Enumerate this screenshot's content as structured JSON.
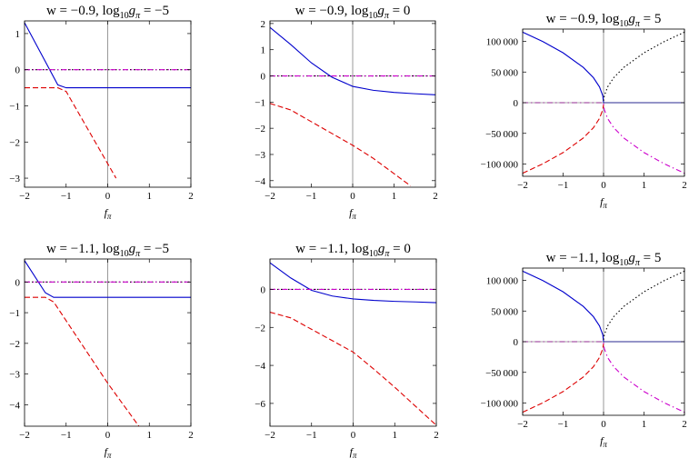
{
  "figure": {
    "panel_count": 6
  },
  "chart_data": [
    {
      "type": "line",
      "title": "w = −0.9,  log10gπ = −5",
      "title_parts": {
        "main": "w = −0.9,  log",
        "sub": "10",
        "rest": "g",
        "sub2": "π",
        "tail": " = −5"
      },
      "xlabel": "f",
      "xlabel_sub": "π",
      "xlim": [
        -2,
        2
      ],
      "ylim": [
        -3.25,
        1.35
      ],
      "xticks": [
        -2,
        -1,
        0,
        1,
        2
      ],
      "yticks": [
        1,
        0,
        -1,
        -2,
        -3
      ],
      "ytick_labels": [
        "1",
        "0",
        "−1",
        "−2",
        "−3"
      ],
      "xtick_labels": [
        "−2",
        "−1",
        "0",
        "1",
        "2"
      ],
      "series": [
        {
          "name": "blue-solid",
          "color": "#0000cc",
          "style": "solid",
          "x": [
            -2,
            -1.2,
            -1.0,
            0,
            1,
            2
          ],
          "y": [
            1.3,
            -0.42,
            -0.5,
            -0.5,
            -0.5,
            -0.5
          ]
        },
        {
          "name": "red-dashed",
          "color": "#dd0000",
          "style": "dashed",
          "x": [
            -2,
            -1.2,
            -1.0,
            0.2
          ],
          "y": [
            -0.5,
            -0.5,
            -0.6,
            -3.0
          ]
        },
        {
          "name": "black-dotted",
          "color": "#000000",
          "style": "dotted",
          "x": [
            -2,
            2
          ],
          "y": [
            0,
            0
          ]
        },
        {
          "name": "magenta-dashdot",
          "color": "#cc00cc",
          "style": "dashdot",
          "x": [
            -2,
            2
          ],
          "y": [
            0,
            0
          ]
        }
      ]
    },
    {
      "type": "line",
      "title": "w = −0.9,  log10gπ = 0",
      "title_parts": {
        "main": "w = −0.9,  log",
        "sub": "10",
        "rest": "g",
        "sub2": "π",
        "tail": " = 0"
      },
      "xlabel": "f",
      "xlabel_sub": "π",
      "xlim": [
        -2,
        2
      ],
      "ylim": [
        -4.25,
        2.1
      ],
      "xticks": [
        -2,
        -1,
        0,
        1,
        2
      ],
      "yticks": [
        2,
        1,
        0,
        -1,
        -2,
        -3,
        -4
      ],
      "ytick_labels": [
        "2",
        "1",
        "0",
        "−1",
        "−2",
        "−3",
        "−4"
      ],
      "xtick_labels": [
        "−2",
        "−1",
        "0",
        "1",
        "2"
      ],
      "series": [
        {
          "name": "blue-solid",
          "color": "#0000cc",
          "style": "solid",
          "x": [
            -2,
            -1.5,
            -1,
            -0.5,
            0,
            0.5,
            1,
            1.5,
            2
          ],
          "y": [
            1.85,
            1.2,
            0.5,
            -0.05,
            -0.4,
            -0.55,
            -0.63,
            -0.68,
            -0.72
          ]
        },
        {
          "name": "red-dashed",
          "color": "#dd0000",
          "style": "dashed",
          "x": [
            -2,
            -1.5,
            -1,
            -0.5,
            0,
            0.5,
            1.4
          ],
          "y": [
            -1.05,
            -1.3,
            -1.75,
            -2.2,
            -2.65,
            -3.15,
            -4.2
          ]
        },
        {
          "name": "black-dotted",
          "color": "#000000",
          "style": "dotted",
          "x": [
            -2,
            2
          ],
          "y": [
            0,
            0
          ]
        },
        {
          "name": "magenta-dashdot",
          "color": "#cc00cc",
          "style": "dashdot",
          "x": [
            -2,
            2
          ],
          "y": [
            0,
            0
          ]
        }
      ]
    },
    {
      "type": "line",
      "title": "w = −0.9,  log10gπ = 5",
      "title_parts": {
        "main": "w = −0.9,  log",
        "sub": "10",
        "rest": "g",
        "sub2": "π",
        "tail": " = 5"
      },
      "xlabel": "f",
      "xlabel_sub": "π",
      "xlim": [
        -2,
        2
      ],
      "ylim": [
        -120000,
        120000
      ],
      "xticks": [
        -2,
        -1,
        0,
        1,
        2
      ],
      "yticks": [
        100000,
        50000,
        0,
        -50000,
        -100000
      ],
      "ytick_labels": [
        "100 000",
        "50 000",
        "0",
        "−50 000",
        "−100 000"
      ],
      "xtick_labels": [
        "−2",
        "−1",
        "0",
        "1",
        "2"
      ],
      "series": [
        {
          "name": "blue-solid",
          "color": "#0000cc",
          "style": "solid",
          "x": [
            -2,
            -1.5,
            -1,
            -0.5,
            -0.25,
            -0.1,
            -0.02,
            0,
            2
          ],
          "y": [
            115000,
            99600,
            81300,
            57500,
            40700,
            25700,
            11500,
            0,
            0
          ]
        },
        {
          "name": "red-dashed",
          "color": "#dd0000",
          "style": "dashed",
          "x": [
            -2,
            -1.5,
            -1,
            -0.5,
            -0.25,
            -0.1,
            -0.02,
            0
          ],
          "y": [
            -115000,
            -99600,
            -81300,
            -57500,
            -40700,
            -25700,
            -11500,
            -3000
          ]
        },
        {
          "name": "black-dotted",
          "color": "#000000",
          "style": "dotted",
          "x": [
            0,
            0.02,
            0.1,
            0.25,
            0.5,
            1,
            1.5,
            2
          ],
          "y": [
            3000,
            11500,
            25700,
            40700,
            57500,
            81300,
            99600,
            115000
          ]
        },
        {
          "name": "magenta-dashdot",
          "color": "#cc00cc",
          "style": "dashdot",
          "x": [
            -2,
            0,
            0,
            0.02,
            0.1,
            0.25,
            0.5,
            1,
            1.5,
            2
          ],
          "y": [
            0,
            0,
            -3000,
            -11500,
            -25700,
            -40700,
            -57500,
            -81300,
            -99600,
            -115000
          ]
        }
      ]
    },
    {
      "type": "line",
      "title": "w = −1.1,  log10gπ = −5",
      "title_parts": {
        "main": "w = −1.1,  log",
        "sub": "10",
        "rest": "g",
        "sub2": "π",
        "tail": " = −5"
      },
      "xlabel": "f",
      "xlabel_sub": "π",
      "xlim": [
        -2,
        2
      ],
      "ylim": [
        -4.7,
        0.75
      ],
      "xticks": [
        -2,
        -1,
        0,
        1,
        2
      ],
      "yticks": [
        0,
        -1,
        -2,
        -3,
        -4
      ],
      "ytick_labels": [
        "0",
        "−1",
        "−2",
        "−3",
        "−4"
      ],
      "xtick_labels": [
        "−2",
        "−1",
        "0",
        "1",
        "2"
      ],
      "series": [
        {
          "name": "blue-solid",
          "color": "#0000cc",
          "style": "solid",
          "x": [
            -2,
            -1.5,
            -1.3,
            0,
            1,
            2
          ],
          "y": [
            0.7,
            -0.35,
            -0.5,
            -0.5,
            -0.5,
            -0.5
          ]
        },
        {
          "name": "red-dashed",
          "color": "#dd0000",
          "style": "dashed",
          "x": [
            -2,
            -1.5,
            -1.3,
            0,
            0.75
          ],
          "y": [
            -0.5,
            -0.5,
            -0.65,
            -3.3,
            -4.7
          ]
        },
        {
          "name": "black-dotted",
          "color": "#000000",
          "style": "dotted",
          "x": [
            -2,
            2
          ],
          "y": [
            0,
            0
          ]
        },
        {
          "name": "magenta-dashdot",
          "color": "#cc00cc",
          "style": "dashdot",
          "x": [
            -2,
            2
          ],
          "y": [
            0,
            0
          ]
        }
      ]
    },
    {
      "type": "line",
      "title": "w = −1.1,  log10gπ = 0",
      "title_parts": {
        "main": "w = −1.1,  log",
        "sub": "10",
        "rest": "g",
        "sub2": "π",
        "tail": " = 0"
      },
      "xlabel": "f",
      "xlabel_sub": "π",
      "xlim": [
        -2,
        2
      ],
      "ylim": [
        -7.2,
        1.6
      ],
      "xticks": [
        -2,
        -1,
        0,
        1,
        2
      ],
      "yticks": [
        0,
        -2,
        -4,
        -6
      ],
      "ytick_labels": [
        "0",
        "−2",
        "−4",
        "−6"
      ],
      "xtick_labels": [
        "−2",
        "−1",
        "0",
        "1",
        "2"
      ],
      "series": [
        {
          "name": "blue-solid",
          "color": "#0000cc",
          "style": "solid",
          "x": [
            -2,
            -1.5,
            -1,
            -0.5,
            0,
            0.5,
            1,
            1.5,
            2
          ],
          "y": [
            1.4,
            0.6,
            -0.05,
            -0.35,
            -0.5,
            -0.58,
            -0.63,
            -0.66,
            -0.7
          ]
        },
        {
          "name": "red-dashed",
          "color": "#dd0000",
          "style": "dashed",
          "x": [
            -2,
            -1.5,
            -1,
            -0.5,
            0,
            0.5,
            1,
            1.5,
            2
          ],
          "y": [
            -1.2,
            -1.5,
            -2.1,
            -2.7,
            -3.3,
            -4.2,
            -5.15,
            -6.15,
            -7.15
          ]
        },
        {
          "name": "black-dotted",
          "color": "#000000",
          "style": "dotted",
          "x": [
            -2,
            2
          ],
          "y": [
            0,
            0
          ]
        },
        {
          "name": "magenta-dashdot",
          "color": "#cc00cc",
          "style": "dashdot",
          "x": [
            -2,
            2
          ],
          "y": [
            0,
            0
          ]
        }
      ]
    },
    {
      "type": "line",
      "title": "w = −1.1,  log10gπ = 5",
      "title_parts": {
        "main": "w = −1.1,  log",
        "sub": "10",
        "rest": "g",
        "sub2": "π",
        "tail": " = 5"
      },
      "xlabel": "f",
      "xlabel_sub": "π",
      "xlim": [
        -2,
        2
      ],
      "ylim": [
        -120000,
        120000
      ],
      "xticks": [
        -2,
        -1,
        0,
        1,
        2
      ],
      "yticks": [
        100000,
        50000,
        0,
        -50000,
        -100000
      ],
      "ytick_labels": [
        "100 000",
        "50 000",
        "0",
        "−50 000",
        "−100 000"
      ],
      "xtick_labels": [
        "−2",
        "−1",
        "0",
        "1",
        "2"
      ],
      "series": [
        {
          "name": "blue-solid",
          "color": "#0000cc",
          "style": "solid",
          "x": [
            -2,
            -1.5,
            -1,
            -0.5,
            -0.25,
            -0.1,
            -0.02,
            0,
            2
          ],
          "y": [
            115000,
            99600,
            81300,
            57500,
            40700,
            25700,
            11500,
            0,
            0
          ]
        },
        {
          "name": "red-dashed",
          "color": "#dd0000",
          "style": "dashed",
          "x": [
            -2,
            -1.5,
            -1,
            -0.5,
            -0.25,
            -0.1,
            -0.02,
            0
          ],
          "y": [
            -115000,
            -99600,
            -81300,
            -57500,
            -40700,
            -25700,
            -11500,
            -3000
          ]
        },
        {
          "name": "black-dotted",
          "color": "#000000",
          "style": "dotted",
          "x": [
            0,
            0.02,
            0.1,
            0.25,
            0.5,
            1,
            1.5,
            2
          ],
          "y": [
            3000,
            11500,
            25700,
            40700,
            57500,
            81300,
            99600,
            115000
          ]
        },
        {
          "name": "magenta-dashdot",
          "color": "#cc00cc",
          "style": "dashdot",
          "x": [
            -2,
            0,
            0,
            0.02,
            0.1,
            0.25,
            0.5,
            1,
            1.5,
            2
          ],
          "y": [
            0,
            0,
            -3000,
            -11500,
            -25700,
            -40700,
            -57500,
            -81300,
            -99600,
            -115000
          ]
        }
      ]
    }
  ]
}
